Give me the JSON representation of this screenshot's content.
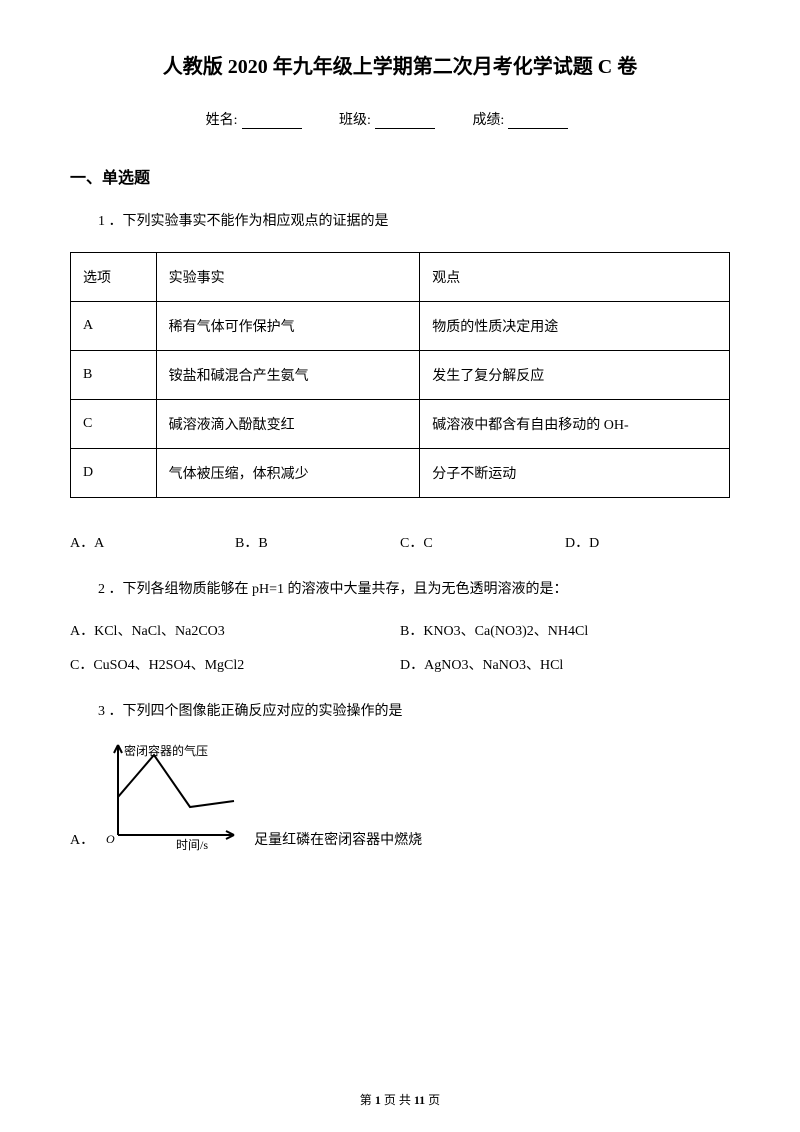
{
  "title": "人教版 2020 年九年级上学期第二次月考化学试题 C 卷",
  "info": {
    "name_label": "姓名:",
    "class_label": "班级:",
    "score_label": "成绩:"
  },
  "section1": {
    "heading": "一、单选题",
    "q1": {
      "text": "1 ．下列实验事实不能作为相应观点的证据的是",
      "table": {
        "headers": [
          "选项",
          "实验事实",
          "观点"
        ],
        "rows": [
          [
            "A",
            "稀有气体可作保护气",
            "物质的性质决定用途"
          ],
          [
            "B",
            "铵盐和碱混合产生氨气",
            "发生了复分解反应"
          ],
          [
            "C",
            "碱溶液滴入酚酞变红",
            "碱溶液中都含有自由移动的 OH-"
          ],
          [
            "D",
            "气体被压缩，体积减少",
            "分子不断运动"
          ]
        ]
      },
      "options": [
        "A．A",
        "B．B",
        "C．C",
        "D．D"
      ]
    },
    "q2": {
      "text": "2 ．下列各组物质能够在 pH=1 的溶液中大量共存，且为无色透明溶液的是：",
      "options": [
        "A．KCl、NaCl、Na2CO3",
        "B．KNO3、Ca(NO3)2、NH4Cl",
        "C．CuSO4、H2SO4、MgCl2",
        "D．AgNO3、NaNO3、HCl"
      ]
    },
    "q3": {
      "text": "3 ．下列四个图像能正确反应对应的实验操作的是",
      "chart": {
        "y_label": "密闭容器的气压",
        "x_label": "时间/s",
        "stroke": "#000000",
        "bg": "#ffffff",
        "width": 138,
        "height": 112,
        "points": [
          [
            16,
            94
          ],
          [
            16,
            56
          ],
          [
            52,
            14
          ],
          [
            88,
            66
          ],
          [
            132,
            60
          ]
        ],
        "line_width": 2
      },
      "optA_letter": "A．",
      "optA_desc": "足量红磷在密闭容器中燃烧"
    }
  },
  "footer": {
    "text_prefix": "第 ",
    "page": "1",
    "text_mid": " 页 共 ",
    "total": "11",
    "text_suffix": " 页"
  }
}
